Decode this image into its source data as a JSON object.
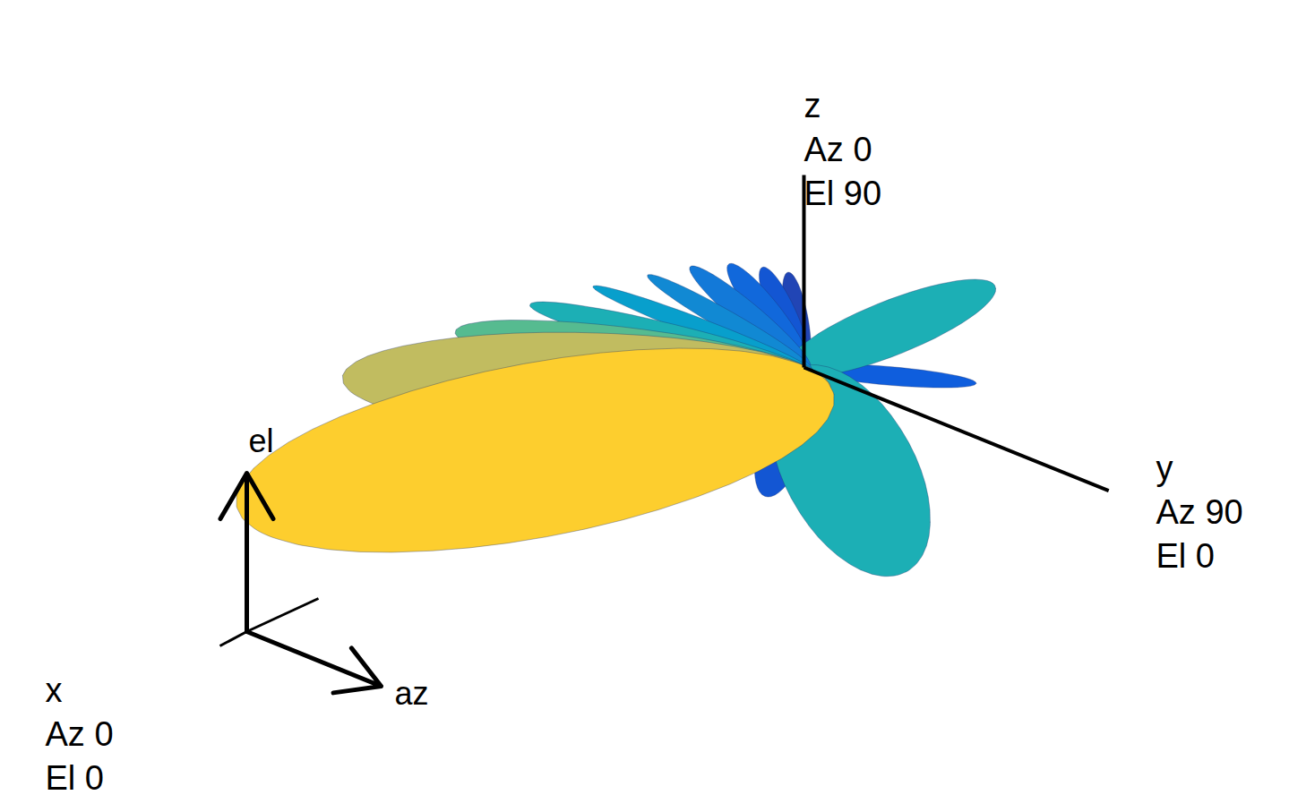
{
  "chart_data": {
    "type": "3d_radiation_pattern",
    "tick_labels": false,
    "clim": [
      0.2,
      1.1
    ],
    "axes": [
      {
        "name": "x",
        "direction": [
          1,
          0,
          0
        ],
        "labels": [
          "Az 0",
          "El 0"
        ]
      },
      {
        "name": "y",
        "direction": [
          0,
          1,
          0
        ],
        "labels": [
          "Az 90",
          "El 0"
        ]
      },
      {
        "name": "z",
        "direction": [
          0,
          0,
          1
        ],
        "labels": [
          "Az 0",
          "El 90"
        ]
      }
    ],
    "view_axes": [
      "az",
      "el"
    ],
    "lobes": [
      {
        "az": 0,
        "el": 0,
        "magnitude": 1.0,
        "beamwidth_az": 70,
        "beamwidth_el": 16
      },
      {
        "az": 0,
        "el": 18,
        "magnitude": 0.85,
        "beamwidth_az": 70,
        "beamwidth_el": 12
      },
      {
        "az": 0,
        "el": 28,
        "magnitude": 0.7,
        "beamwidth_az": 60,
        "beamwidth_el": 10
      },
      {
        "az": 0,
        "el": 36,
        "magnitude": 0.6,
        "beamwidth_az": 56,
        "beamwidth_el": 9
      },
      {
        "az": 0,
        "el": 44,
        "magnitude": 0.52,
        "beamwidth_az": 50,
        "beamwidth_el": 8
      },
      {
        "az": 0,
        "el": 52,
        "magnitude": 0.45,
        "beamwidth_az": 44,
        "beamwidth_el": 8
      },
      {
        "az": 0,
        "el": 60,
        "magnitude": 0.4,
        "beamwidth_az": 40,
        "beamwidth_el": 8
      },
      {
        "az": 0,
        "el": 68,
        "magnitude": 0.35,
        "beamwidth_az": 36,
        "beamwidth_el": 8
      },
      {
        "az": 0,
        "el": 76,
        "magnitude": 0.3,
        "beamwidth_az": 30,
        "beamwidth_el": 8
      },
      {
        "az": 0,
        "el": 84,
        "magnitude": 0.26,
        "beamwidth_az": 26,
        "beamwidth_el": 8
      },
      {
        "az": 90,
        "el": 40,
        "magnitude": 0.6,
        "beamwidth_az": 40,
        "beamwidth_el": 22
      },
      {
        "az": 110,
        "el": 5,
        "magnitude": 0.32,
        "beamwidth_az": 24,
        "beamwidth_el": 8
      },
      {
        "az": 70,
        "el": -25,
        "magnitude": 0.6,
        "beamwidth_az": 38,
        "beamwidth_el": 30
      },
      {
        "az": 40,
        "el": -45,
        "magnitude": 0.3,
        "beamwidth_az": 30,
        "beamwidth_el": 20
      },
      {
        "az": 20,
        "el": -65,
        "magnitude": 0.22,
        "beamwidth_az": 30,
        "beamwidth_el": 20
      }
    ]
  }
}
